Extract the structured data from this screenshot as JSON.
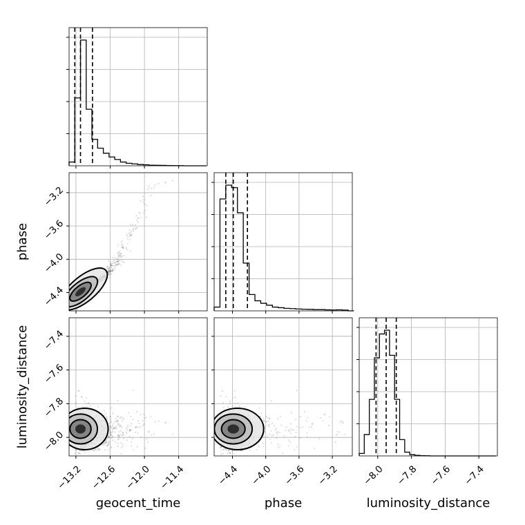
{
  "chart_data": {
    "type": "corner",
    "parameters": [
      {
        "name": "geocent_time",
        "label": "geocent_time",
        "range": [
          -13.32,
          -10.9
        ],
        "ticks": [
          -13.2,
          -12.6,
          -12.0,
          -11.4
        ],
        "tick_labels": [
          "−13.2",
          "−12.6",
          "−12.0",
          "−11.4"
        ],
        "quantiles": [
          -13.22,
          -13.12,
          -12.91
        ],
        "histogram": {
          "bin_edges": [
            -13.32,
            -13.22,
            -13.12,
            -13.02,
            -12.92,
            -12.82,
            -12.72,
            -12.62,
            -12.52,
            -12.42,
            -12.32,
            -12.22,
            -12.12,
            -12.02,
            -11.92,
            -11.82,
            -11.72,
            -11.62,
            -11.52,
            -11.42,
            -11.32,
            -11.22,
            -11.12,
            -11.02,
            -10.92
          ],
          "counts": [
            0.03,
            0.54,
            1.0,
            0.45,
            0.21,
            0.14,
            0.1,
            0.07,
            0.05,
            0.03,
            0.02,
            0.015,
            0.01,
            0.008,
            0.005,
            0.004,
            0.003,
            0.002,
            0.001,
            0.001,
            0.0,
            0.0,
            0.0,
            0.0
          ]
        }
      },
      {
        "name": "phase",
        "label": "phase",
        "range": [
          -4.62,
          -2.96
        ],
        "ticks": [
          -4.4,
          -4.0,
          -3.6,
          -3.2
        ],
        "tick_labels": [
          "−4.4",
          "−4.0",
          "−3.6",
          "−3.2"
        ],
        "quantiles": [
          -4.48,
          -4.39,
          -4.22
        ],
        "histogram": {
          "bin_edges": [
            -4.62,
            -4.55,
            -4.48,
            -4.41,
            -4.34,
            -4.27,
            -4.2,
            -4.13,
            -4.06,
            -3.99,
            -3.92,
            -3.85,
            -3.78,
            -3.71,
            -3.64,
            -3.57,
            -3.5,
            -3.43,
            -3.36,
            -3.29,
            -3.22,
            -3.15,
            -3.08,
            -3.01,
            -2.94
          ],
          "counts": [
            0.03,
            0.89,
            1.0,
            0.98,
            0.78,
            0.38,
            0.13,
            0.08,
            0.06,
            0.045,
            0.03,
            0.025,
            0.02,
            0.018,
            0.015,
            0.013,
            0.012,
            0.01,
            0.01,
            0.008,
            0.007,
            0.008,
            0.006,
            0.0
          ]
        }
      },
      {
        "name": "luminosity_distance",
        "label": "luminosity_distance",
        "range": [
          -8.11,
          -7.29
        ],
        "ticks": [
          -8.0,
          -7.8,
          -7.6,
          -7.4
        ],
        "tick_labels": [
          "−8.0",
          "−7.8",
          "−7.6",
          "−7.4"
        ],
        "quantiles": [
          -8.01,
          -7.95,
          -7.89
        ],
        "histogram": {
          "bin_edges": [
            -8.11,
            -8.08,
            -8.05,
            -8.02,
            -7.99,
            -7.96,
            -7.93,
            -7.9,
            -7.87,
            -7.84,
            -7.81,
            -7.78,
            -7.75,
            -7.72,
            -7.69,
            -7.66,
            -7.63,
            -7.6,
            -7.57,
            -7.54,
            -7.51,
            -7.48,
            -7.45,
            -7.42,
            -7.39,
            -7.36,
            -7.33,
            -7.3
          ],
          "counts": [
            0.02,
            0.17,
            0.45,
            0.78,
            0.97,
            1.0,
            0.8,
            0.45,
            0.13,
            0.03,
            0.01,
            0.005,
            0.002,
            0.001,
            0.0,
            0.0,
            0.0,
            0.0,
            0.0,
            0.0,
            0.0,
            0.0,
            0.0,
            0.0,
            0.0,
            0.0,
            0.0
          ]
        }
      }
    ],
    "grid": true,
    "quantile_line_style": "dashed",
    "contour_color": "#000000",
    "sample_color": "#000000"
  }
}
